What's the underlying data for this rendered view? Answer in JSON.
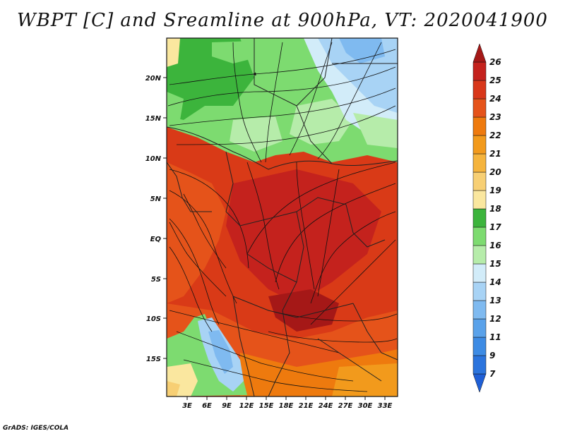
{
  "title": "WBPT [C] and Sreamline at 900hPa, VT: 2020041900",
  "footer": "GrADS: IGES/COLA",
  "map": {
    "lat_ticks": [
      "20N",
      "15N",
      "10N",
      "5N",
      "EQ",
      "5S",
      "10S",
      "15S"
    ],
    "lon_ticks": [
      "3E",
      "6E",
      "9E",
      "12E",
      "15E",
      "18E",
      "21E",
      "24E",
      "27E",
      "30E",
      "33E"
    ]
  },
  "colorbar": {
    "labels": [
      "7",
      "9",
      "11",
      "12",
      "13",
      "14",
      "15",
      "16",
      "17",
      "18",
      "19",
      "20",
      "21",
      "22",
      "23",
      "24",
      "25",
      "26"
    ],
    "colors": [
      "#1f5fd6",
      "#2b74dd",
      "#3d8be4",
      "#5aa2ea",
      "#7fbaf0",
      "#a8d3f5",
      "#d2ecf9",
      "#b6ecaa",
      "#7ddb70",
      "#3cb43c",
      "#fae79f",
      "#f7cf74",
      "#f5b43d",
      "#f29a1c",
      "#ee7a0e",
      "#e5531a",
      "#d8371a",
      "#c4221d",
      "#a51817"
    ],
    "colors_note": ""
  },
  "colors": {
    "hot": "#d93a17",
    "warm": "#ee7a0e",
    "cool_green": "#7ddb70",
    "cool_blue": "#a8d3f5"
  }
}
